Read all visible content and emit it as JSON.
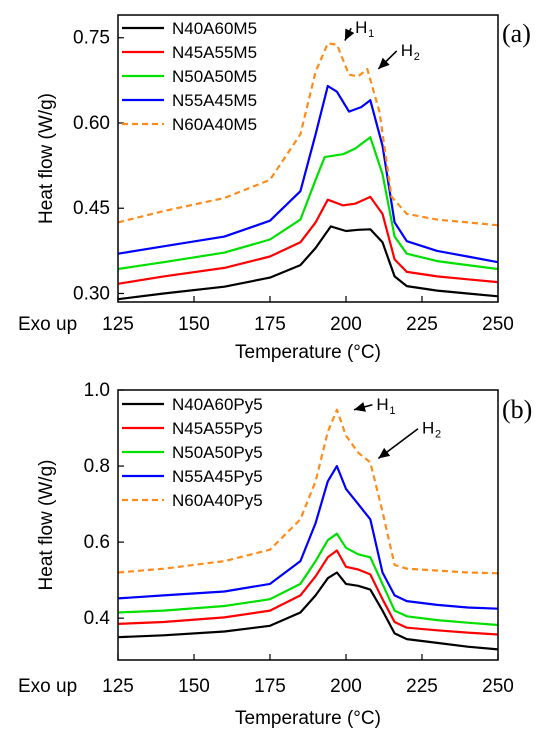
{
  "chart_data": [
    {
      "type": "line",
      "panel_label": "(a)",
      "xlabel": "Temperature (°C)",
      "ylabel": "Heat flow (W/g)",
      "exo_label": "Exo up",
      "xlim": [
        125,
        250
      ],
      "ylim": [
        0.285,
        0.79
      ],
      "xticks": [
        125,
        150,
        175,
        200,
        225,
        250
      ],
      "yticks": [
        0.3,
        0.45,
        0.6,
        0.75
      ],
      "ytick_labels": [
        "0.30",
        "0.45",
        "0.60",
        "0.75"
      ],
      "legend_position": "top-left",
      "annotations": [
        {
          "text": "H",
          "sub": "1",
          "x": 203,
          "y": 0.758,
          "arrow_to": [
            197,
            0.745
          ]
        },
        {
          "text": "H",
          "sub": "2",
          "x": 218,
          "y": 0.718,
          "arrow_to": [
            208,
            0.695
          ]
        }
      ],
      "series": [
        {
          "name": "N40A60M5",
          "color": "#000000",
          "dash": false,
          "points": [
            [
              125,
              0.29
            ],
            [
              140,
              0.3
            ],
            [
              160,
              0.312
            ],
            [
              175,
              0.328
            ],
            [
              185,
              0.35
            ],
            [
              190,
              0.38
            ],
            [
              195,
              0.418
            ],
            [
              200,
              0.41
            ],
            [
              204,
              0.412
            ],
            [
              208,
              0.413
            ],
            [
              212,
              0.39
            ],
            [
              216,
              0.33
            ],
            [
              220,
              0.313
            ],
            [
              230,
              0.305
            ],
            [
              240,
              0.3
            ],
            [
              250,
              0.295
            ]
          ]
        },
        {
          "name": "N45A55M5",
          "color": "#ff0000",
          "dash": false,
          "points": [
            [
              125,
              0.317
            ],
            [
              140,
              0.33
            ],
            [
              160,
              0.345
            ],
            [
              175,
              0.365
            ],
            [
              185,
              0.39
            ],
            [
              190,
              0.425
            ],
            [
              194,
              0.465
            ],
            [
              199,
              0.455
            ],
            [
              203,
              0.458
            ],
            [
              208,
              0.47
            ],
            [
              212,
              0.44
            ],
            [
              216,
              0.36
            ],
            [
              220,
              0.338
            ],
            [
              230,
              0.33
            ],
            [
              240,
              0.325
            ],
            [
              250,
              0.32
            ]
          ]
        },
        {
          "name": "N50A50M5",
          "color": "#00e000",
          "dash": false,
          "points": [
            [
              125,
              0.343
            ],
            [
              140,
              0.355
            ],
            [
              160,
              0.372
            ],
            [
              175,
              0.395
            ],
            [
              185,
              0.43
            ],
            [
              190,
              0.5
            ],
            [
              193,
              0.54
            ],
            [
              199,
              0.545
            ],
            [
              203,
              0.555
            ],
            [
              208,
              0.575
            ],
            [
              212,
              0.51
            ],
            [
              216,
              0.4
            ],
            [
              220,
              0.37
            ],
            [
              230,
              0.357
            ],
            [
              240,
              0.35
            ],
            [
              250,
              0.343
            ]
          ]
        },
        {
          "name": "N55A45M5",
          "color": "#0000ff",
          "dash": false,
          "points": [
            [
              125,
              0.37
            ],
            [
              140,
              0.383
            ],
            [
              160,
              0.4
            ],
            [
              175,
              0.428
            ],
            [
              185,
              0.48
            ],
            [
              190,
              0.58
            ],
            [
              194,
              0.665
            ],
            [
              197,
              0.655
            ],
            [
              201,
              0.62
            ],
            [
              205,
              0.628
            ],
            [
              208,
              0.64
            ],
            [
              212,
              0.56
            ],
            [
              216,
              0.425
            ],
            [
              220,
              0.392
            ],
            [
              230,
              0.375
            ],
            [
              240,
              0.365
            ],
            [
              250,
              0.355
            ]
          ]
        },
        {
          "name": "N60A40M5",
          "color": "#ff8c1a",
          "dash": true,
          "points": [
            [
              125,
              0.425
            ],
            [
              140,
              0.445
            ],
            [
              160,
              0.468
            ],
            [
              175,
              0.5
            ],
            [
              185,
              0.58
            ],
            [
              190,
              0.69
            ],
            [
              194,
              0.74
            ],
            [
              197,
              0.738
            ],
            [
              201,
              0.685
            ],
            [
              204,
              0.682
            ],
            [
              207,
              0.695
            ],
            [
              211,
              0.62
            ],
            [
              215,
              0.47
            ],
            [
              220,
              0.44
            ],
            [
              230,
              0.43
            ],
            [
              240,
              0.425
            ],
            [
              250,
              0.42
            ]
          ]
        }
      ]
    },
    {
      "type": "line",
      "panel_label": "(b)",
      "xlabel": "Temperature (°C)",
      "ylabel": "Heat flow (W/g)",
      "exo_label": "Exo up",
      "xlim": [
        125,
        250
      ],
      "ylim": [
        0.29,
        1.0
      ],
      "xticks": [
        125,
        150,
        175,
        200,
        225,
        250
      ],
      "yticks": [
        0.4,
        0.6,
        0.8,
        1.0
      ],
      "ytick_labels": [
        "0.4",
        "0.6",
        "0.8",
        "1.0"
      ],
      "legend_position": "top-left",
      "annotations": [
        {
          "text": "H",
          "sub": "1",
          "x": 210,
          "y": 0.948,
          "arrow_to": [
            200,
            0.948
          ]
        },
        {
          "text": "H",
          "sub": "2",
          "x": 225,
          "y": 0.885,
          "arrow_to": [
            208,
            0.82
          ]
        }
      ],
      "series": [
        {
          "name": "N40A60Py5",
          "color": "#000000",
          "dash": false,
          "points": [
            [
              125,
              0.35
            ],
            [
              140,
              0.355
            ],
            [
              160,
              0.365
            ],
            [
              175,
              0.38
            ],
            [
              185,
              0.415
            ],
            [
              190,
              0.46
            ],
            [
              194,
              0.505
            ],
            [
              197,
              0.52
            ],
            [
              200,
              0.49
            ],
            [
              204,
              0.485
            ],
            [
              208,
              0.475
            ],
            [
              212,
              0.42
            ],
            [
              216,
              0.36
            ],
            [
              220,
              0.345
            ],
            [
              230,
              0.335
            ],
            [
              240,
              0.325
            ],
            [
              250,
              0.318
            ]
          ]
        },
        {
          "name": "N45A55Py5",
          "color": "#ff0000",
          "dash": false,
          "points": [
            [
              125,
              0.385
            ],
            [
              140,
              0.39
            ],
            [
              160,
              0.402
            ],
            [
              175,
              0.42
            ],
            [
              185,
              0.46
            ],
            [
              190,
              0.51
            ],
            [
              194,
              0.56
            ],
            [
              197,
              0.578
            ],
            [
              200,
              0.535
            ],
            [
              204,
              0.528
            ],
            [
              208,
              0.515
            ],
            [
              212,
              0.45
            ],
            [
              216,
              0.39
            ],
            [
              220,
              0.375
            ],
            [
              230,
              0.368
            ],
            [
              240,
              0.362
            ],
            [
              250,
              0.357
            ]
          ]
        },
        {
          "name": "N50A50Py5",
          "color": "#00e000",
          "dash": false,
          "points": [
            [
              125,
              0.415
            ],
            [
              140,
              0.42
            ],
            [
              160,
              0.432
            ],
            [
              175,
              0.45
            ],
            [
              185,
              0.49
            ],
            [
              190,
              0.55
            ],
            [
              194,
              0.605
            ],
            [
              197,
              0.622
            ],
            [
              200,
              0.585
            ],
            [
              204,
              0.568
            ],
            [
              208,
              0.56
            ],
            [
              212,
              0.49
            ],
            [
              216,
              0.42
            ],
            [
              220,
              0.405
            ],
            [
              230,
              0.395
            ],
            [
              240,
              0.388
            ],
            [
              250,
              0.382
            ]
          ]
        },
        {
          "name": "N55A45Py5",
          "color": "#0000ff",
          "dash": false,
          "points": [
            [
              125,
              0.452
            ],
            [
              140,
              0.46
            ],
            [
              160,
              0.47
            ],
            [
              175,
              0.49
            ],
            [
              185,
              0.55
            ],
            [
              190,
              0.65
            ],
            [
              194,
              0.76
            ],
            [
              197,
              0.8
            ],
            [
              200,
              0.74
            ],
            [
              204,
              0.7
            ],
            [
              208,
              0.66
            ],
            [
              212,
              0.52
            ],
            [
              216,
              0.46
            ],
            [
              220,
              0.445
            ],
            [
              230,
              0.435
            ],
            [
              240,
              0.428
            ],
            [
              250,
              0.425
            ]
          ]
        },
        {
          "name": "N60A40Py5",
          "color": "#ff8c1a",
          "dash": true,
          "points": [
            [
              125,
              0.52
            ],
            [
              140,
              0.53
            ],
            [
              160,
              0.55
            ],
            [
              175,
              0.58
            ],
            [
              185,
              0.66
            ],
            [
              190,
              0.76
            ],
            [
              194,
              0.89
            ],
            [
              197,
              0.948
            ],
            [
              200,
              0.88
            ],
            [
              204,
              0.835
            ],
            [
              208,
              0.81
            ],
            [
              212,
              0.68
            ],
            [
              216,
              0.54
            ],
            [
              220,
              0.53
            ],
            [
              230,
              0.525
            ],
            [
              240,
              0.52
            ],
            [
              250,
              0.518
            ]
          ]
        }
      ]
    }
  ]
}
